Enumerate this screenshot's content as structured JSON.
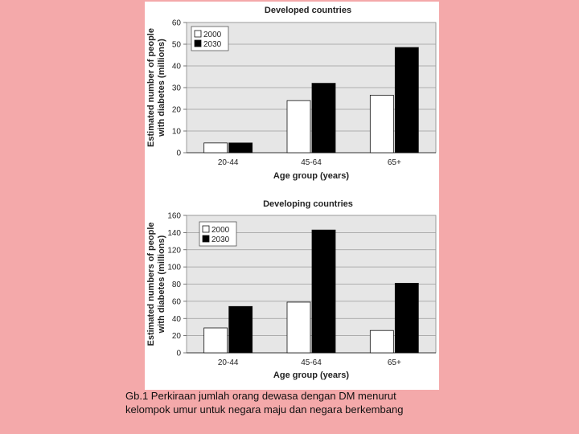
{
  "chart_data": [
    {
      "type": "bar",
      "title": "Developed countries",
      "categories": [
        "20-44",
        "45-64",
        "65+"
      ],
      "series": [
        {
          "name": "2000",
          "values": [
            4.5,
            24,
            26.5
          ],
          "color": "#ffffff"
        },
        {
          "name": "2030",
          "values": [
            4.5,
            32,
            48.5
          ],
          "color": "#000000"
        }
      ],
      "ylabel_lines": [
        "Estimated number of people",
        "with diabetes (millions)"
      ],
      "xlabel": "Age group (years)",
      "ylim": [
        0,
        60
      ],
      "yticks": [
        0,
        10,
        20,
        30,
        40,
        50,
        60
      ],
      "grid": true,
      "legend_position": "top-left",
      "plot_background": "#e6e6e6"
    },
    {
      "type": "bar",
      "title": "Developing countries",
      "categories": [
        "20-44",
        "45-64",
        "65+"
      ],
      "series": [
        {
          "name": "2000",
          "values": [
            29,
            59,
            26
          ],
          "color": "#ffffff"
        },
        {
          "name": "2030",
          "values": [
            54,
            143,
            81
          ],
          "color": "#000000"
        }
      ],
      "ylabel_lines": [
        "Estimated numbers of people",
        "with diabetes (millions)"
      ],
      "xlabel": "Age group (years)",
      "ylim": [
        0,
        160
      ],
      "yticks": [
        0,
        20,
        40,
        60,
        80,
        100,
        120,
        140,
        160
      ],
      "grid": true,
      "legend_position": "top-left",
      "plot_background": "#e6e6e6"
    }
  ],
  "caption": {
    "line1": "Gb.1 Perkiraan jumlah orang dewasa dengan DM menurut",
    "line2": "kelompok umur untuk negara maju dan negara berkembang"
  }
}
